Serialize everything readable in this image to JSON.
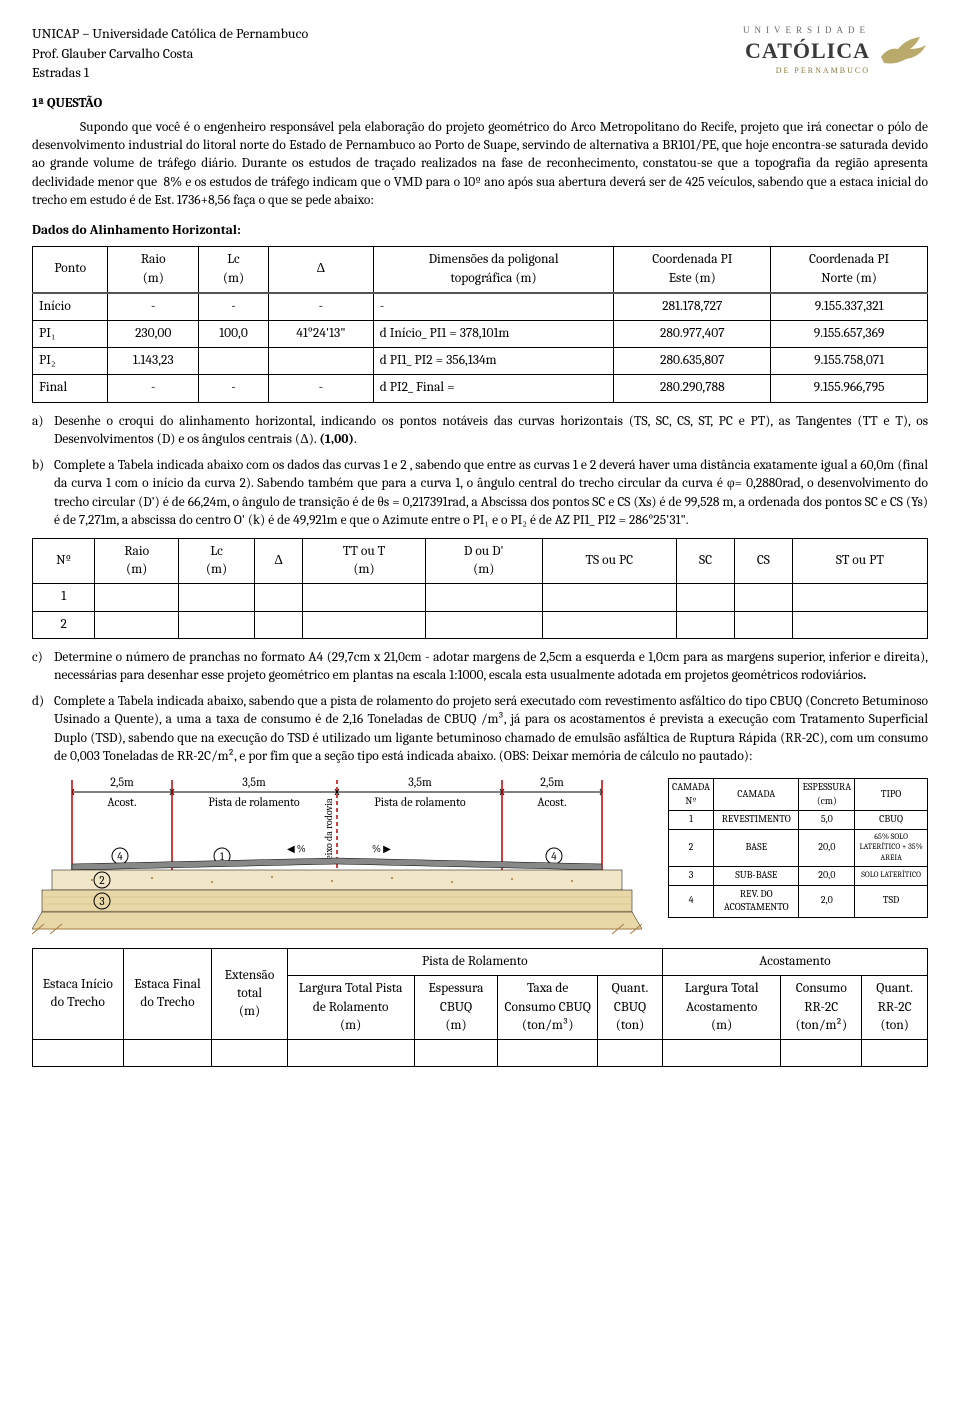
{
  "header": {
    "line1": "UNICAP – Universidade Católica de Pernambuco",
    "line2": "Prof. Glauber Carvalho Costa",
    "line3": "Estradas 1",
    "logo_top": "UNIVERSIDADE",
    "logo_main": "CATÓLICA",
    "logo_sub": "DE PERNAMBUCO"
  },
  "q1_title": "1ª QUESTÃO",
  "q1_body": "Supondo que você é o engenheiro responsável pela elaboração do projeto geométrico do Arco Metropolitano do Recife, projeto que irá conectar o pólo de desenvolvimento industrial do litoral norte do Estado de Pernambuco ao Porto de Suape, servindo de alternativa a BR101/PE, que hoje encontra-se saturada devido ao grande volume de tráfego diário. Durante os estudos de traçado realizados na fase de reconhecimento, constatou-se que a topografia da região apresenta declividade menor que  8% e os estudos de tráfego indicam que o VMD para o 10º ano após sua abertura deverá ser de 425 veículos, sabendo que a estaca inicial do trecho em estudo é de Est. 1736+8,56 faça o que se pede abaixo:",
  "dados_title": "Dados do Alinhamento Horizontal:",
  "t1": {
    "head": [
      "Ponto",
      "Raio\n(m)",
      "Lc\n(m)",
      "Δ",
      "Dimensões da poligonal\ntopográfica (m)",
      "Coordenada PI\nEste (m)",
      "Coordenada PI\nNorte (m)"
    ],
    "rows": [
      [
        "Início",
        "-",
        "-",
        "-",
        "-",
        "281.178,727",
        "9.155.337,321"
      ],
      [
        "PI₁",
        "230,00",
        "100,0",
        "41°24'13\"",
        "d Início_ PI1 = 378,101m",
        "280.977,407",
        "9.155.657,369"
      ],
      [
        "PI₂",
        "1.143,23",
        "",
        "",
        "d PI1_ PI2 = 356,134m",
        "280.635,807",
        "9.155.758,071"
      ],
      [
        "Final",
        "-",
        "-",
        "-",
        "d PI2_ Final =",
        "280.290,788",
        "9.155.966,795"
      ]
    ]
  },
  "item_a": "Desenhe o croqui do alinhamento horizontal, indicando os pontos notáveis das curvas horizontais (TS, SC, CS, ST, PC e PT), as Tangentes (TT e T), os Desenvolvimentos (D) e os ângulos centrais (Δ). (1,00).",
  "item_b": "Complete a Tabela indicada abaixo com os dados das curvas 1 e 2 , sabendo que entre as curvas 1 e 2  deverá haver uma distância exatamente igual a 60,0m (final da curva 1 com o início da curva 2). Sabendo também que para a curva 1, o ângulo central do trecho circular da curva é φ= 0,2880rad, o desenvolvimento do trecho circular (D') é de 66,24m, o ângulo de transição é de θs = 0,217391rad, a Abscissa dos pontos SC e CS (Xs) é de 99,528 m, a ordenada dos pontos SC e CS (Ys) é de 7,271m, a abscissa do centro O' (k) é de 49,921m e que o Azimute entre o PI₁ e o PI₂ é de AZ PI1_ PI2 = 286°25'31\".",
  "t2": {
    "head": [
      "Nº",
      "Raio\n(m)",
      "Lc\n(m)",
      "Δ",
      "TT ou T\n(m)",
      "D ou D'\n(m)",
      "TS ou PC",
      "SC",
      "CS",
      "ST ou PT"
    ],
    "rows": [
      [
        "1",
        "",
        "",
        "",
        "",
        "",
        "",
        "",
        "",
        ""
      ],
      [
        "2",
        "",
        "",
        "",
        "",
        "",
        "",
        "",
        "",
        ""
      ]
    ]
  },
  "item_c": "Determine o número de pranchas no formato A4 (29,7cm x 21,0cm - adotar margens de 2,5cm a esquerda e 1,0cm para as margens superior, inferior e direita), necessárias para desenhar esse projeto geométrico em plantas na escala 1:1000, escala esta usualmente adotada em projetos geométricos rodoviários.",
  "item_d": "Complete a Tabela indicada abaixo, sabendo que a pista de rolamento do projeto será executado com revestimento asfáltico do tipo CBUQ (Concreto Betuminoso Usinado a Quente), a uma a taxa de consumo é de 2,16 Toneladas de CBUQ /m³, já para os acostamentos é prevista a execução com Tratamento Superficial Duplo (TSD), sabendo que na execução do TSD é utilizado um ligante betuminoso chamado de emulsão asfáltica de Ruptura Rápida (RR-2C), com um consumo de 0,003 Toneladas de RR-2C/m²,  e por fim que a seção tipo está indicada abaixo. (OBS: Deixar memória de cálculo no pautado):",
  "cross": {
    "acost_w": "2,5m",
    "acost_lbl": "Acost.",
    "pista_w": "3,5m",
    "pista_lbl": "Pista de rolamento",
    "eixo": "eixo  da  rodovia",
    "circles": [
      "④",
      "①",
      "①",
      "④"
    ],
    "circles2": "②",
    "circles3": "③",
    "slope": "%"
  },
  "layers": {
    "head": [
      "CAMADA\nNº",
      "CAMADA",
      "ESPESSURA\n(cm)",
      "TIPO"
    ],
    "rows": [
      [
        "1",
        "REVESTIMENTO",
        "5,0",
        "CBUQ"
      ],
      [
        "2",
        "BASE",
        "20,0",
        "65% SOLO LATERÍTICO + 35% AREIA"
      ],
      [
        "3",
        "SUB-BASE",
        "20,0",
        "SOLO LATERÍTICO"
      ],
      [
        "4",
        "REV. DO ACOSTAMENTO",
        "2,0",
        "TSD"
      ]
    ]
  },
  "t3": {
    "group_pista": "Pista de Rolamento",
    "group_acost": "Acostamento",
    "head": [
      "Estaca Início do Trecho",
      "Estaca Final do Trecho",
      "Extensão total\n(m)",
      "Largura Total Pista de Rolamento\n(m)",
      "Espessura CBUQ\n(m)",
      "Taxa de Consumo CBUQ\n(ton/m³)",
      "Quant. CBUQ\n(ton)",
      "Largura Total Acostamento\n(m)",
      "Consumo RR-2C\n(ton/m²)",
      "Quant. RR-2C\n(ton)"
    ]
  },
  "colors": {
    "text": "#000000",
    "grid": "#000000",
    "logo_gray": "#6b6b6b",
    "logo_gold": "#8a7a3a",
    "red_line": "#c00000",
    "brown": "#a37b3e",
    "tan": "#d8c89c"
  }
}
